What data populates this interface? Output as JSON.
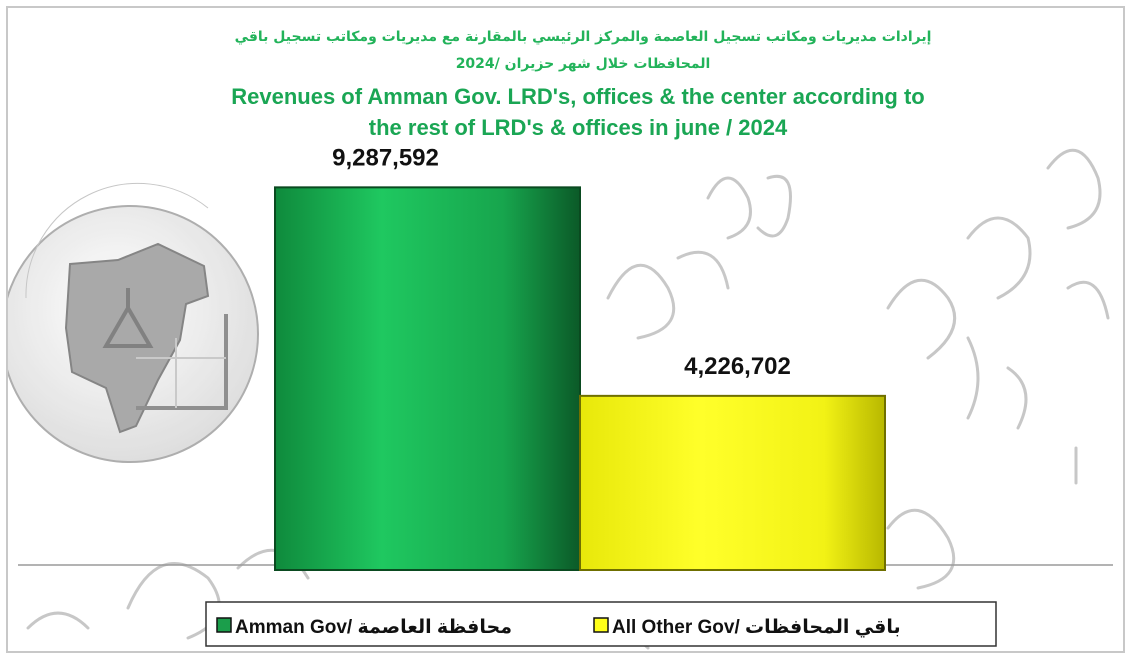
{
  "chart_data": {
    "type": "bar",
    "title_ar": [
      "إيرادات مديريات ومكاتب تسجيل العاصمة والمركز الرئيسي بالمقارنة مع مديريات ومكاتب تسجيل باقي",
      "المحافظات خلال شهر حزيران /2024"
    ],
    "title_en": [
      "Revenues of Amman Gov. LRD's, offices & the center according to",
      "the rest of LRD's & offices in june / 2024"
    ],
    "xlabel": "",
    "ylabel": "",
    "ylim": [
      0,
      10000000
    ],
    "grid": false,
    "legend_position": "bottom",
    "series": [
      {
        "name": "Amman Gov/ محافظة العاصمة",
        "value": 9287592,
        "label": "9,287,592",
        "color": "#1fbf5f"
      },
      {
        "name": "All Other Gov/ باقي المحافظات",
        "value": 4226702,
        "label": "4,226,702",
        "color": "#ffff1a"
      }
    ]
  },
  "watermark": {
    "text": "دائرة الأراضي والمساحة"
  }
}
